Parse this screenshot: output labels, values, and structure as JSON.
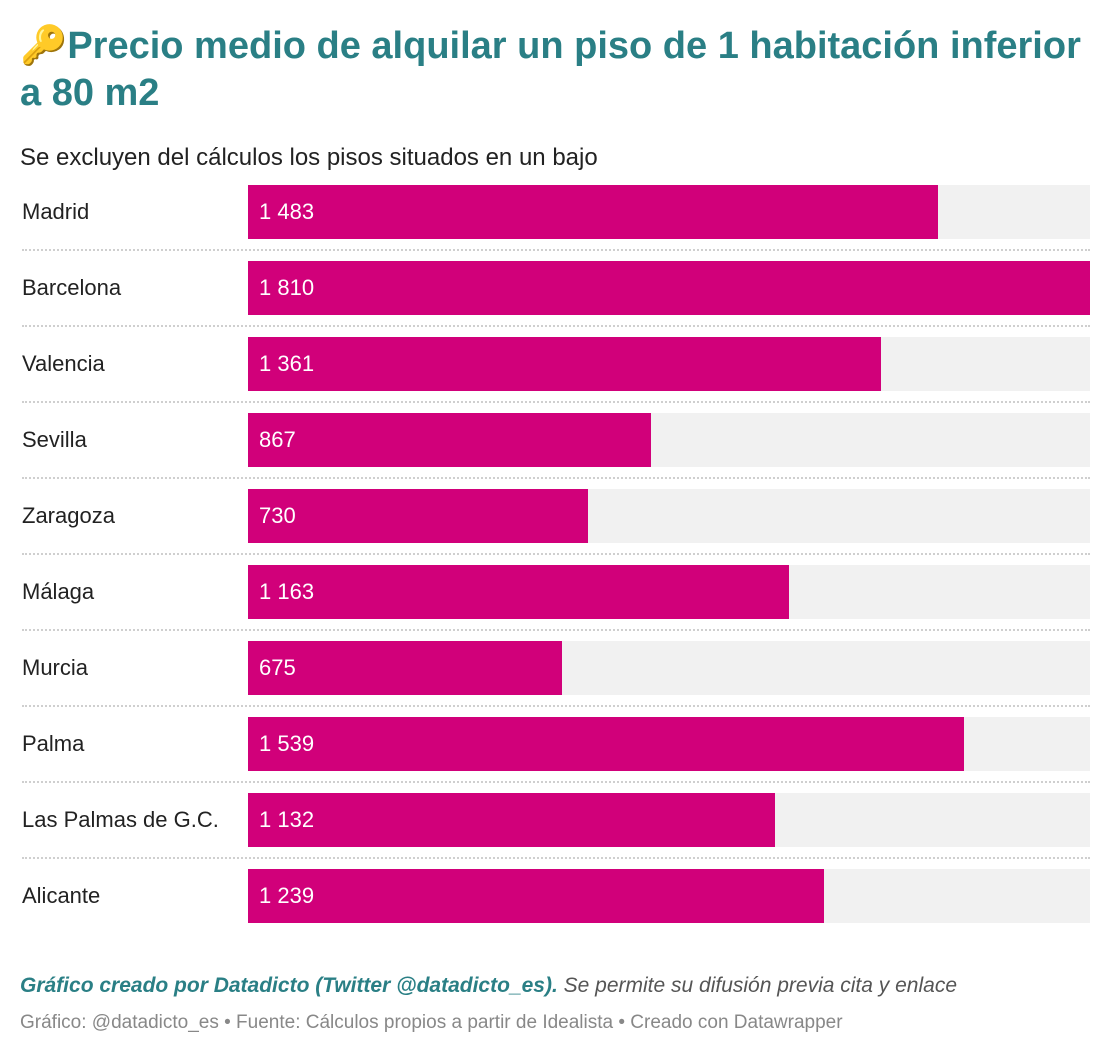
{
  "header": {
    "title_icon": "🔑",
    "title_icon_name": "key-icon",
    "title": "Precio medio de alquilar un piso de 1 habitación inferior a 80 m2",
    "subtitle": "Se excluyen del cálculos los pisos situados en un bajo"
  },
  "chart_data": {
    "type": "bar",
    "orientation": "horizontal",
    "categories": [
      "Madrid",
      "Barcelona",
      "Valencia",
      "Sevilla",
      "Zaragoza",
      "Málaga",
      "Murcia",
      "Palma",
      "Las Palmas de G.C.",
      "Alicante"
    ],
    "values": [
      1483,
      1810,
      1361,
      867,
      730,
      1163,
      675,
      1539,
      1132,
      1239
    ],
    "value_labels": [
      "1 483",
      "1 810",
      "1 361",
      "867",
      "730",
      "1 163",
      "675",
      "1 539",
      "1 132",
      "1 239"
    ],
    "xlim": [
      0,
      1810
    ],
    "grid": false,
    "legend": "none"
  },
  "colors": {
    "accent": "#2a7f85",
    "bar": "#d1007a",
    "track": "#f1f1f1",
    "value_text": "#ffffff"
  },
  "footer": {
    "credit": "Gráfico creado por Datadicto (Twitter @datadicto_es).",
    "note": " Se permite su difusión previa cita y enlace",
    "meta": "Gráfico: @datadicto_es • Fuente: Cálculos propios a partir de Idealista • Creado con Datawrapper"
  }
}
